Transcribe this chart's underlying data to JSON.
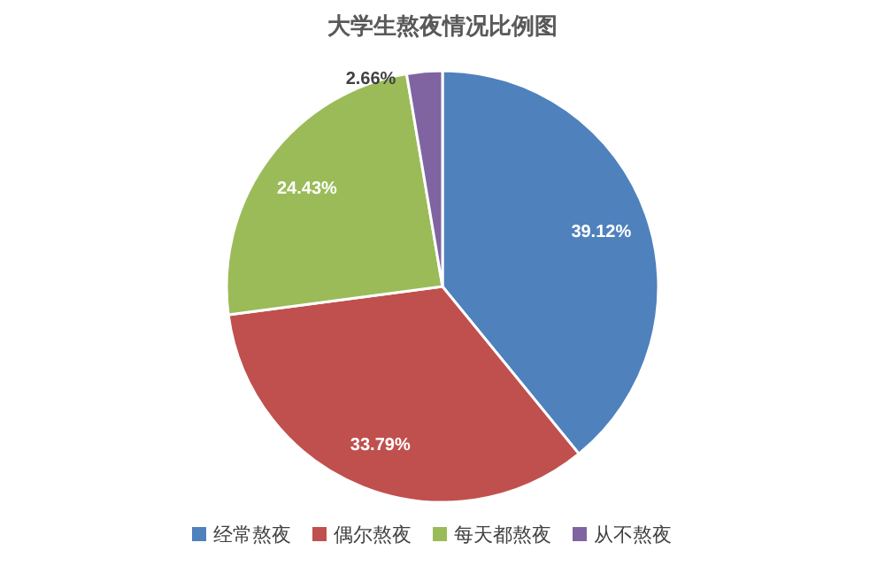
{
  "chart_data": {
    "type": "pie",
    "title": "大学生熬夜情况比例图",
    "categories": [
      "经常熬夜",
      "偶尔熬夜",
      "每天都熬夜",
      "从不熬夜"
    ],
    "values": [
      39.12,
      33.79,
      24.43,
      2.66
    ],
    "colors": [
      "#4f81bd",
      "#c0504d",
      "#9bbb59",
      "#8064a2"
    ],
    "value_labels": [
      "39.12%",
      "33.79%",
      "24.43%",
      "2.66%"
    ],
    "legend": "bottom"
  }
}
